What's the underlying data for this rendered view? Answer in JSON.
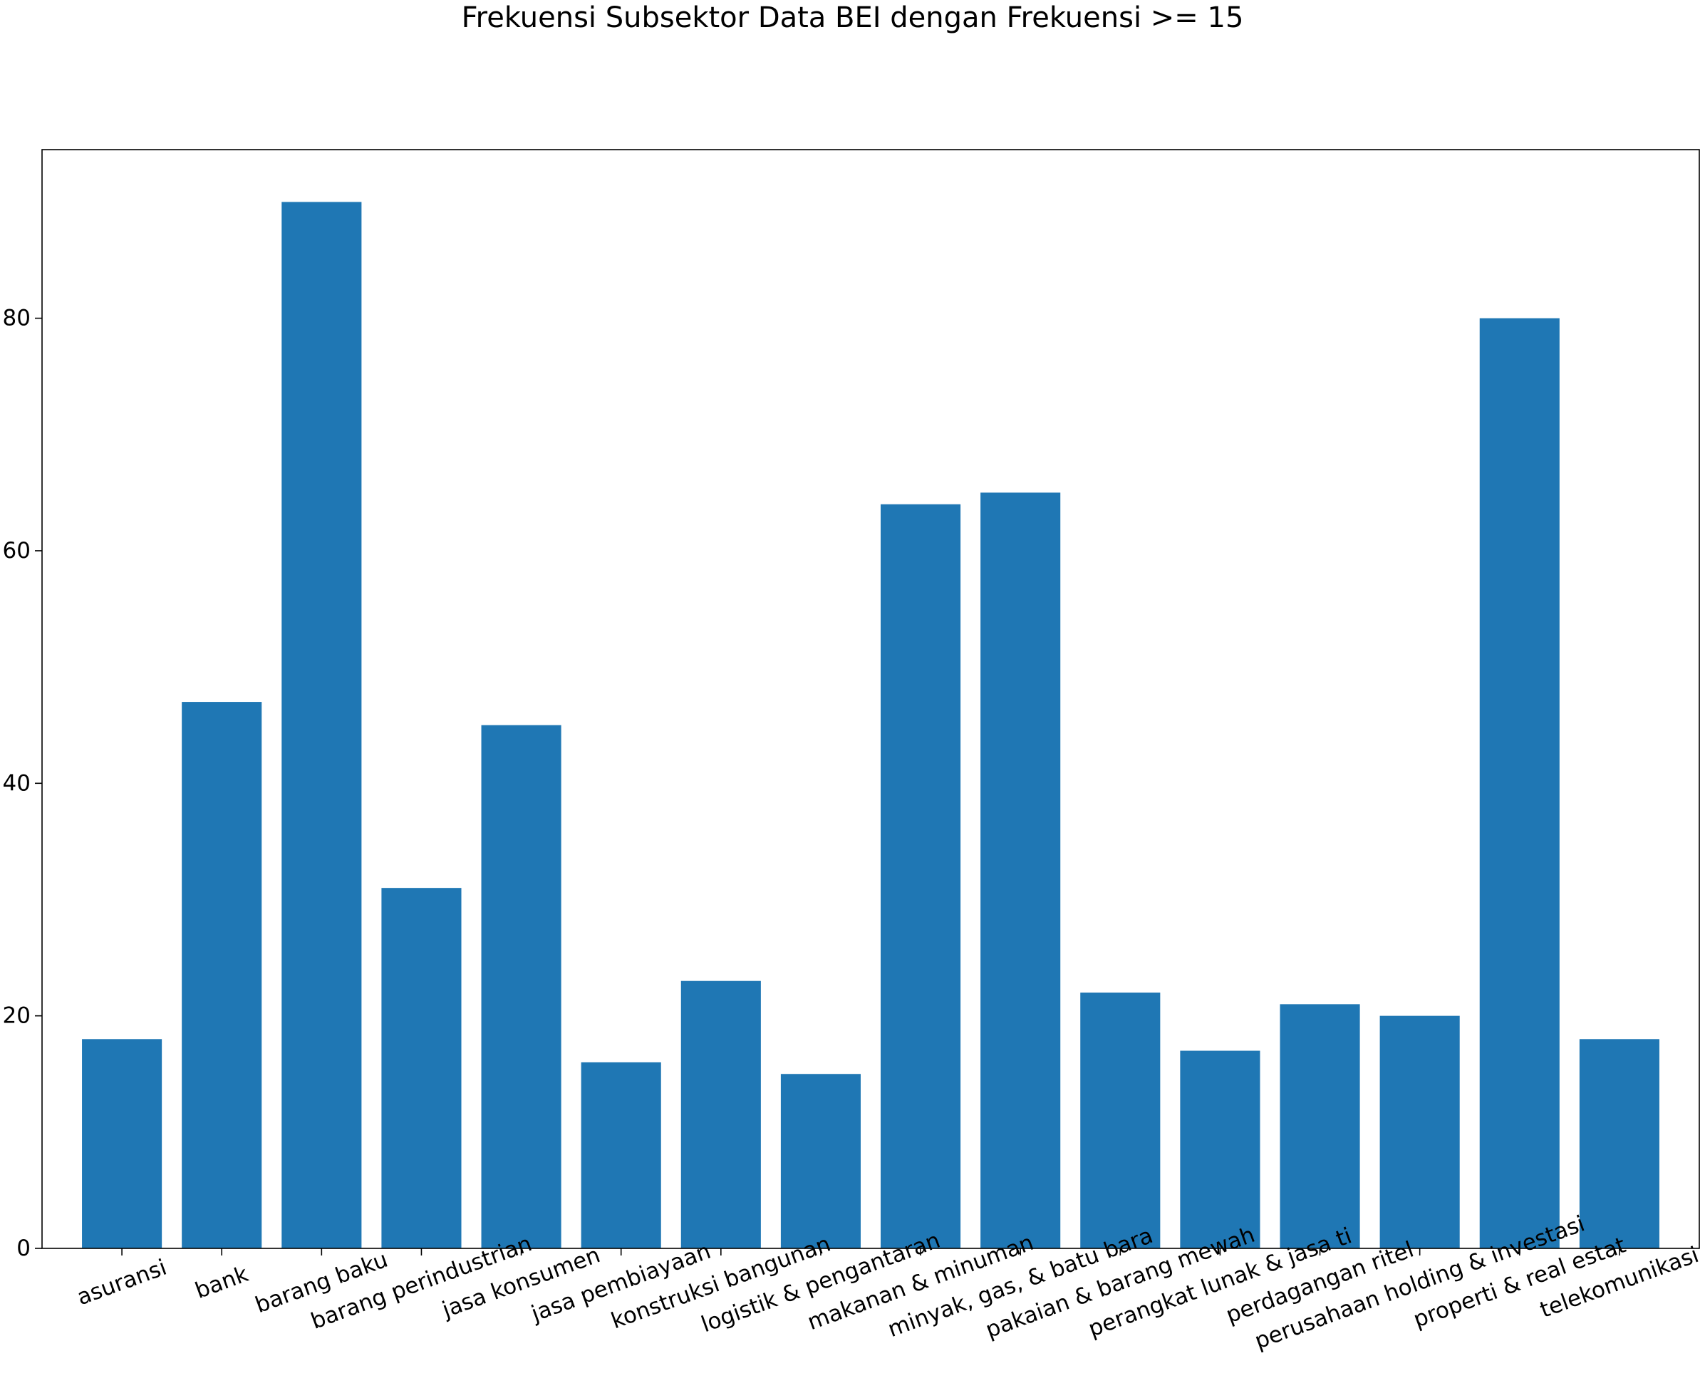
{
  "chart_data": {
    "type": "bar",
    "title": "Frekuensi Subsektor Data BEI dengan Frekuensi >= 15",
    "xlabel": "",
    "ylabel": "",
    "categories": [
      "asuransi",
      "bank",
      "barang baku",
      "barang perindustrian",
      "jasa konsumen",
      "jasa pembiayaan",
      "konstruksi bangunan",
      "logistik & pengantaran",
      "makanan & minuman",
      "minyak, gas, & batu bara",
      "pakaian & barang mewah",
      "perangkat lunak & jasa ti",
      "perdagangan ritel",
      "perusahaan holding & investasi",
      "properti & real estat",
      "telekomunikasi"
    ],
    "values": [
      18,
      47,
      90,
      31,
      45,
      16,
      23,
      15,
      64,
      65,
      22,
      17,
      21,
      20,
      80,
      18
    ],
    "ylim": [
      0,
      94.5
    ],
    "yticks": [
      0,
      20,
      40,
      60,
      80
    ],
    "bar_color": "#1f77b4",
    "grid": false,
    "legend": "none"
  }
}
